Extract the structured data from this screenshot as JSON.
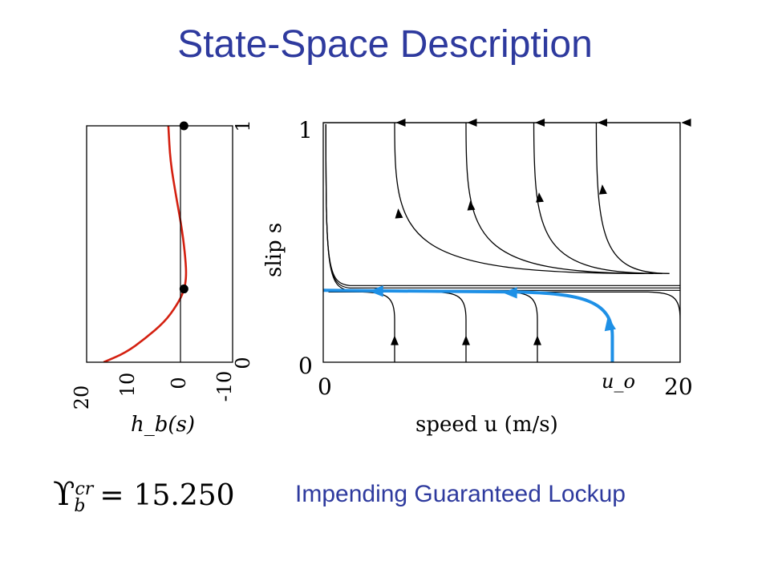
{
  "slide": {
    "title": "State-Space Description",
    "caption": "Impending Guaranteed Lockup",
    "formula": {
      "symbol": "ϒ",
      "superscript": "cr",
      "subscript": "b",
      "equals": "=",
      "value": "15.250"
    }
  },
  "colors": {
    "title": "#2e3a9e",
    "hb_curve": "#d42010",
    "highlight_trajectory": "#1e90e6",
    "trajectory": "#000000"
  },
  "chart_data": [
    {
      "type": "line",
      "xlabel": "h_b(s)",
      "x_ticks": [
        "20",
        "10",
        "0",
        "-10"
      ],
      "y_ticks": [
        "0",
        "1"
      ],
      "xlim": [
        20,
        -10
      ],
      "ylim": [
        0,
        1
      ],
      "zero_line": true,
      "series": [
        {
          "points": [
            [
              16.5,
              0.0
            ],
            [
              12,
              0.04
            ],
            [
              8,
              0.1
            ],
            [
              4,
              0.17
            ],
            [
              1.5,
              0.24
            ],
            [
              0,
              0.3
            ],
            [
              -0.5,
              0.36
            ],
            [
              -0.3,
              0.44
            ],
            [
              0.3,
              0.55
            ],
            [
              1.6,
              0.7
            ],
            [
              2.8,
              0.85
            ],
            [
              3.2,
              1.0
            ]
          ]
        }
      ],
      "markers": [
        [
          0,
          0.31
        ],
        [
          0,
          1.0
        ]
      ]
    },
    {
      "type": "line",
      "xlabel": "speed u   (m/s)",
      "ylabel": "slip s",
      "x_ticks": [
        "0",
        "20"
      ],
      "y_ticks": [
        "0",
        "1"
      ],
      "xlim": [
        0,
        20
      ],
      "ylim": [
        0,
        1
      ],
      "annotation": "u_o",
      "annotation_x": 16.2,
      "equilibrium_slip": 0.31,
      "upper_trajectories": [
        {
          "u_top": 4.0,
          "u_bottom": 18.0
        },
        {
          "u_top": 8.0,
          "u_bottom": 18.5
        },
        {
          "u_top": 11.8,
          "u_bottom": 19.0
        },
        {
          "u_top": 15.3,
          "u_bottom": 19.4
        },
        {
          "u_top": 20.0,
          "u_bottom": 20.0
        }
      ],
      "lower_trajectories": [
        {
          "u_start": 4.0
        },
        {
          "u_start": 8.0
        },
        {
          "u_start": 12.0
        },
        {
          "u_start": 20.0
        }
      ],
      "highlight_trajectory": {
        "u_start": 16.2
      }
    }
  ]
}
